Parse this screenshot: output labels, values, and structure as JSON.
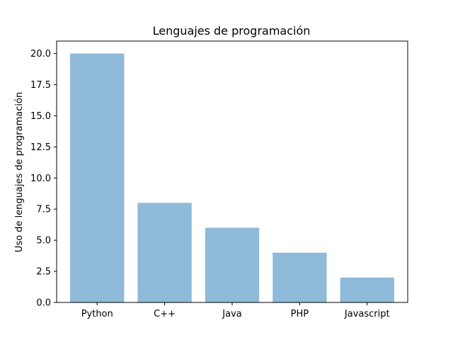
{
  "chart_data": {
    "type": "bar",
    "title": "Lenguajes de programación",
    "xlabel": "",
    "ylabel": "Uso de lenguajes de programación",
    "categories": [
      "Python",
      "C++",
      "Java",
      "PHP",
      "Javascript"
    ],
    "values": [
      20,
      8,
      6,
      4,
      2
    ],
    "ylim": [
      0,
      21
    ],
    "yticks": [
      0.0,
      2.5,
      5.0,
      7.5,
      10.0,
      12.5,
      15.0,
      17.5,
      20.0
    ],
    "ytick_labels": [
      "0.0",
      "2.5",
      "5.0",
      "7.5",
      "10.0",
      "12.5",
      "15.0",
      "17.5",
      "20.0"
    ],
    "bar_color": "#8fbad9",
    "grid": false,
    "legend": "none"
  }
}
